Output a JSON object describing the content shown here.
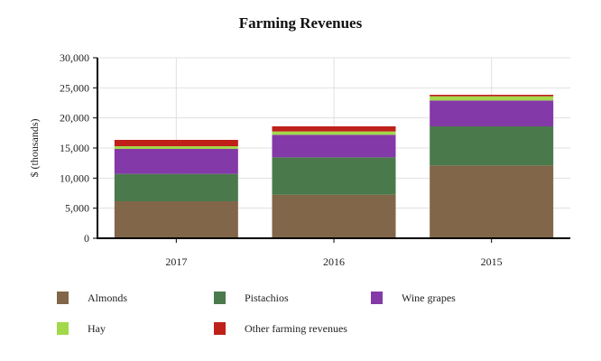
{
  "chart_data": {
    "type": "bar",
    "stacked": true,
    "title": "Farming Revenues",
    "xlabel": "",
    "ylabel": "$ (thousands)",
    "ylim": [
      0,
      30000
    ],
    "yticks": [
      0,
      5000,
      10000,
      15000,
      20000,
      25000,
      30000
    ],
    "ytick_labels": [
      "0",
      "5,000",
      "10,000",
      "15,000",
      "20,000",
      "25,000",
      "30,000"
    ],
    "grid": true,
    "legend_position": "bottom",
    "categories": [
      "2017",
      "2016",
      "2015"
    ],
    "series": [
      {
        "name": "Almonds",
        "color": "#82664a",
        "values": [
          6150,
          7250,
          12100
        ]
      },
      {
        "name": "Pistachios",
        "color": "#4a7a4c",
        "values": [
          4550,
          6200,
          6500
        ]
      },
      {
        "name": "Wine grapes",
        "color": "#8439a8",
        "values": [
          4150,
          3750,
          4300
        ]
      },
      {
        "name": "Hay",
        "color": "#a2d84a",
        "values": [
          450,
          550,
          700
        ]
      },
      {
        "name": "Other farming revenues",
        "color": "#c0201a",
        "values": [
          1050,
          850,
          250
        ]
      }
    ]
  }
}
